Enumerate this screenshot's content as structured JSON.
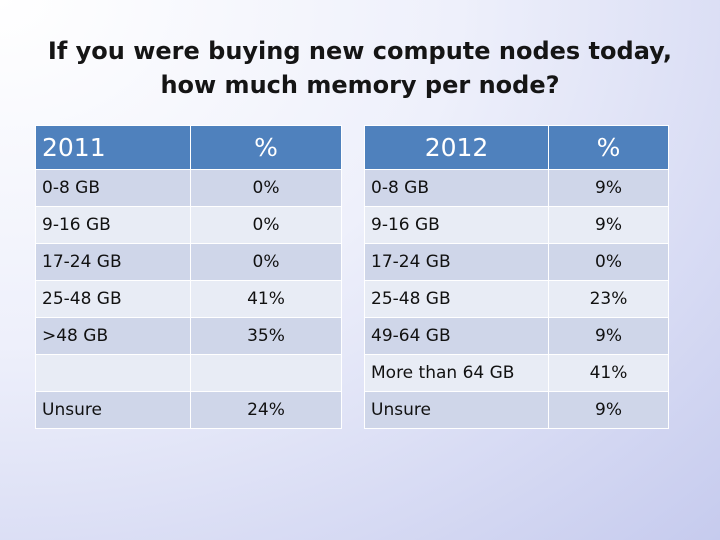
{
  "title": {
    "line1": "If you were buying new compute nodes today,",
    "line2": "how much memory per node?"
  },
  "colors": {
    "header_bg": "#4f81bd",
    "row_dark": "#cfd6e9",
    "row_light": "#e8ecf5"
  },
  "table_2011": {
    "headers": [
      "2011",
      "%"
    ],
    "rows": [
      {
        "label": "0-8 GB",
        "value": "0%"
      },
      {
        "label": "9-16 GB",
        "value": "0%"
      },
      {
        "label": "17-24 GB",
        "value": "0%"
      },
      {
        "label": "25-48 GB",
        "value": "41%"
      },
      {
        "label": ">48 GB",
        "value": "35%"
      },
      {
        "label": "",
        "value": ""
      },
      {
        "label": "Unsure",
        "value": "24%"
      }
    ]
  },
  "table_2012": {
    "headers": [
      "2012",
      "%"
    ],
    "rows": [
      {
        "label": "0-8 GB",
        "value": "9%"
      },
      {
        "label": "9-16 GB",
        "value": "9%"
      },
      {
        "label": "17-24 GB",
        "value": "0%"
      },
      {
        "label": "25-48 GB",
        "value": "23%"
      },
      {
        "label": "49-64 GB",
        "value": "9%"
      },
      {
        "label": "More than 64 GB",
        "value": "41%"
      },
      {
        "label": "Unsure",
        "value": "9%"
      }
    ]
  }
}
